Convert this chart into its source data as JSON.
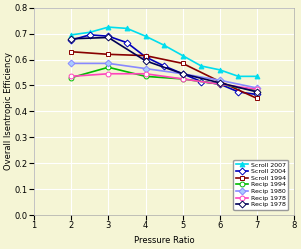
{
  "xlabel": "Pressure Ratio",
  "ylabel": "Overall Isentropic Efficiency",
  "xlim": [
    1,
    8
  ],
  "ylim": [
    0,
    0.8
  ],
  "xticks": [
    1,
    2,
    3,
    4,
    5,
    6,
    7,
    8
  ],
  "yticks": [
    0,
    0.1,
    0.2,
    0.3,
    0.4,
    0.5,
    0.6,
    0.7,
    0.8
  ],
  "background_color": "#f5f5d5",
  "series": [
    {
      "label": "Scroll 2007",
      "color": "#00ddee",
      "marker": "^",
      "markersize": 3.5,
      "linewidth": 1.2,
      "markerfacecolor": "#00ddee",
      "x": [
        2,
        2.5,
        3,
        3.5,
        4,
        4.5,
        5,
        5.5,
        6,
        6.5,
        7
      ],
      "y": [
        0.695,
        0.705,
        0.725,
        0.72,
        0.69,
        0.655,
        0.615,
        0.575,
        0.56,
        0.535,
        0.535
      ]
    },
    {
      "label": "Scroll 2004",
      "color": "#0000bb",
      "marker": "D",
      "markersize": 3.5,
      "linewidth": 1.2,
      "markerfacecolor": "white",
      "x": [
        2,
        2.5,
        3,
        3.5,
        4,
        4.5,
        5,
        5.5,
        6,
        6.5,
        7
      ],
      "y": [
        0.675,
        0.695,
        0.69,
        0.665,
        0.61,
        0.575,
        0.545,
        0.515,
        0.505,
        0.475,
        0.465
      ]
    },
    {
      "label": "Scroll 1994",
      "color": "#880000",
      "marker": "s",
      "markersize": 3.5,
      "linewidth": 1.2,
      "markerfacecolor": "white",
      "x": [
        2,
        3,
        4,
        5,
        6,
        7
      ],
      "y": [
        0.63,
        0.62,
        0.615,
        0.585,
        0.515,
        0.45
      ]
    },
    {
      "label": "Recip 1994",
      "color": "#00bb00",
      "marker": "o",
      "markersize": 3.5,
      "linewidth": 1.2,
      "markerfacecolor": "white",
      "x": [
        2,
        3,
        4,
        5,
        6,
        7
      ],
      "y": [
        0.53,
        0.57,
        0.535,
        0.525,
        0.505,
        0.48
      ]
    },
    {
      "label": "Recip 1980",
      "color": "#8888ff",
      "marker": "D",
      "markersize": 3.5,
      "linewidth": 1.2,
      "markerfacecolor": "#aaccff",
      "x": [
        2,
        3,
        4,
        5,
        6,
        7
      ],
      "y": [
        0.585,
        0.585,
        0.565,
        0.545,
        0.52,
        0.49
      ]
    },
    {
      "label": "Recip 1978",
      "color": "#ff44bb",
      "marker": "o",
      "markersize": 3.5,
      "linewidth": 1.2,
      "markerfacecolor": "white",
      "x": [
        2,
        3,
        4,
        5,
        6,
        7
      ],
      "y": [
        0.535,
        0.545,
        0.545,
        0.525,
        0.505,
        0.485
      ]
    },
    {
      "label": "Recip 1978",
      "color": "#000055",
      "marker": "D",
      "markersize": 3.5,
      "linewidth": 1.2,
      "markerfacecolor": "white",
      "x": [
        2,
        3,
        4,
        5,
        6,
        7
      ],
      "y": [
        0.68,
        0.685,
        0.595,
        0.545,
        0.51,
        0.475
      ]
    }
  ]
}
